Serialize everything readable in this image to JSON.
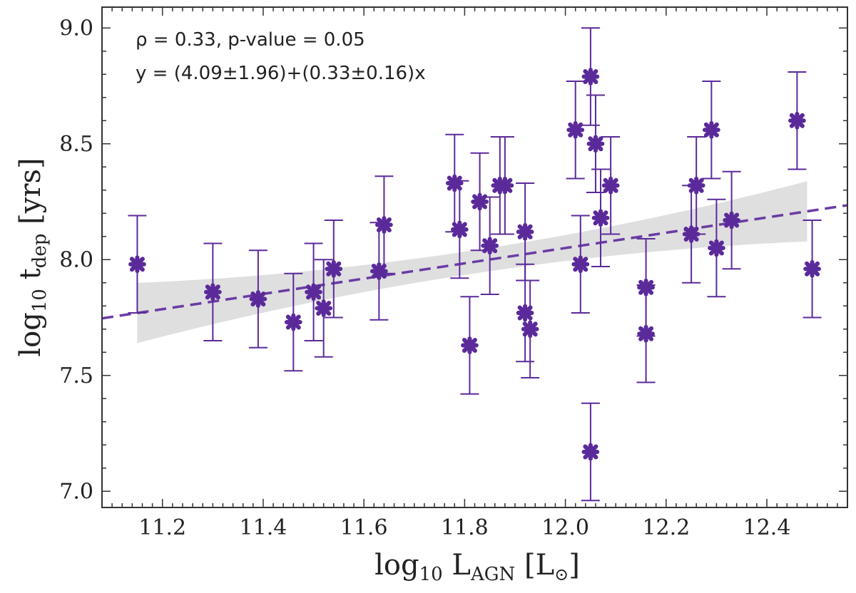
{
  "chart_data": {
    "type": "scatter",
    "xlim": [
      11.08,
      12.56
    ],
    "ylim": [
      6.93,
      9.09
    ],
    "x_ticks": [
      11.2,
      11.4,
      11.6,
      11.8,
      12.0,
      12.2,
      12.4
    ],
    "y_ticks": [
      7.0,
      7.5,
      8.0,
      8.5,
      9.0
    ],
    "x_tick_labels": [
      "11.2",
      "11.4",
      "11.6",
      "11.8",
      "12.0",
      "12.2",
      "12.4"
    ],
    "y_tick_labels": [
      "7.0",
      "7.5",
      "8.0",
      "8.5",
      "9.0"
    ],
    "xlabel": {
      "base": "log",
      "sub1": "10",
      "mid": " L",
      "sub2": "AGN",
      "unit": " [L",
      "sun": "⊙",
      "close": "]"
    },
    "ylabel": {
      "base": "log",
      "sub1": "10",
      "mid": " t",
      "sub2": "dep",
      "unit": " [yrs]"
    },
    "annotations": {
      "stats": "ρ = 0.33, p-value = 0.05",
      "fit_equation": "y = (4.09±1.96)+(0.33±0.16)x"
    },
    "fit": {
      "intercept": 4.09,
      "slope": 0.33,
      "band_x_range": [
        11.15,
        12.48
      ],
      "band_halfwidth_at_ends": 0.13,
      "band_halfwidth_min": 0.05
    },
    "colors": {
      "points": "#5b2a9a",
      "fit_line": "#6a3ba5",
      "band": "#d9d9d9",
      "frame": "#333333"
    },
    "points": [
      {
        "x": 11.15,
        "y": 7.98,
        "err": 0.21
      },
      {
        "x": 11.3,
        "y": 7.86,
        "err": 0.21
      },
      {
        "x": 11.39,
        "y": 7.83,
        "err": 0.21
      },
      {
        "x": 11.46,
        "y": 7.73,
        "err": 0.21
      },
      {
        "x": 11.5,
        "y": 7.86,
        "err": 0.21
      },
      {
        "x": 11.52,
        "y": 7.79,
        "err": 0.21
      },
      {
        "x": 11.54,
        "y": 7.96,
        "err": 0.21
      },
      {
        "x": 11.63,
        "y": 7.95,
        "err": 0.21
      },
      {
        "x": 11.64,
        "y": 8.15,
        "err": 0.21
      },
      {
        "x": 11.78,
        "y": 8.33,
        "err": 0.21
      },
      {
        "x": 11.79,
        "y": 8.13,
        "err": 0.21
      },
      {
        "x": 11.81,
        "y": 7.63,
        "err": 0.21
      },
      {
        "x": 11.83,
        "y": 8.25,
        "err": 0.21
      },
      {
        "x": 11.85,
        "y": 8.06,
        "err": 0.21
      },
      {
        "x": 11.87,
        "y": 8.32,
        "err": 0.21
      },
      {
        "x": 11.88,
        "y": 8.32,
        "err": 0.21
      },
      {
        "x": 11.92,
        "y": 8.12,
        "err": 0.21
      },
      {
        "x": 11.92,
        "y": 7.77,
        "err": 0.21
      },
      {
        "x": 11.93,
        "y": 7.7,
        "err": 0.21
      },
      {
        "x": 12.02,
        "y": 8.56,
        "err": 0.21
      },
      {
        "x": 12.03,
        "y": 7.98,
        "err": 0.21
      },
      {
        "x": 12.05,
        "y": 8.79,
        "err": 0.21
      },
      {
        "x": 12.05,
        "y": 7.17,
        "err": 0.21
      },
      {
        "x": 12.06,
        "y": 8.5,
        "err": 0.21
      },
      {
        "x": 12.07,
        "y": 8.18,
        "err": 0.21
      },
      {
        "x": 12.09,
        "y": 8.32,
        "err": 0.21
      },
      {
        "x": 12.16,
        "y": 7.88,
        "err": 0.21
      },
      {
        "x": 12.16,
        "y": 7.68,
        "err": 0.21
      },
      {
        "x": 12.25,
        "y": 8.11,
        "err": 0.21
      },
      {
        "x": 12.26,
        "y": 8.32,
        "err": 0.21
      },
      {
        "x": 12.29,
        "y": 8.56,
        "err": 0.21
      },
      {
        "x": 12.3,
        "y": 8.05,
        "err": 0.21
      },
      {
        "x": 12.33,
        "y": 8.17,
        "err": 0.21
      },
      {
        "x": 12.46,
        "y": 8.6,
        "err": 0.21
      },
      {
        "x": 12.49,
        "y": 7.96,
        "err": 0.21
      }
    ]
  }
}
